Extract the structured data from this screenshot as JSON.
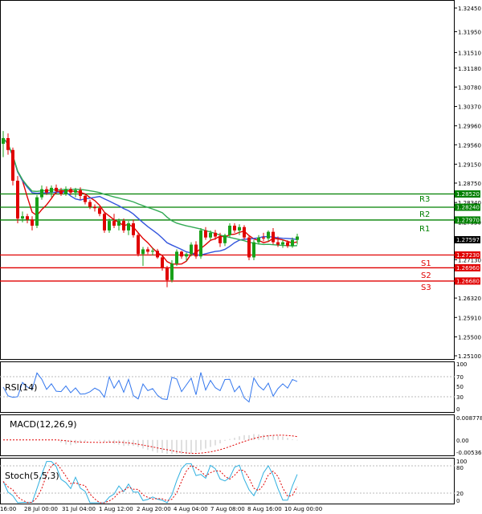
{
  "chart_data": {
    "type": "candlestick",
    "main": {
      "yticks": [
        "1.32450",
        "1.31950",
        "1.31510",
        "1.31180",
        "1.30780",
        "1.30370",
        "1.29960",
        "1.29560",
        "1.29150",
        "1.28750",
        "1.28340",
        "1.27930",
        "1.27130",
        "1.26320",
        "1.25910",
        "1.25500",
        "1.25100"
      ],
      "ylim": [
        1.251,
        1.3245
      ],
      "levels": [
        {
          "name": "R3",
          "value": 1.2852,
          "color": "#008000"
        },
        {
          "name": "R2",
          "value": 1.2824,
          "color": "#008000"
        },
        {
          "name": "R1",
          "value": 1.2797,
          "color": "#008000"
        },
        {
          "name": "S1",
          "value": 1.2723,
          "color": "#e00000"
        },
        {
          "name": "S2",
          "value": 1.2696,
          "color": "#e00000"
        },
        {
          "name": "S3",
          "value": 1.2668,
          "color": "#e00000"
        }
      ],
      "level_labels": [
        "1.28520",
        "1.28240",
        "1.27970",
        "1.27230",
        "1.26960",
        "1.26680"
      ],
      "current_price": "1.27597",
      "ma_colors": {
        "fast": "#e00000",
        "mid": "#3355dd",
        "slow": "#33aa55"
      }
    },
    "candles": [
      [
        1.2958,
        1.2985,
        1.293,
        1.297
      ],
      [
        1.297,
        1.298,
        1.2935,
        1.2945
      ],
      [
        1.2945,
        1.295,
        1.287,
        1.288
      ],
      [
        1.288,
        1.289,
        1.279,
        1.28
      ],
      [
        1.28,
        1.2815,
        1.2792,
        1.2805
      ],
      [
        1.2805,
        1.281,
        1.279,
        1.2798
      ],
      [
        1.2798,
        1.2805,
        1.2775,
        1.2785
      ],
      [
        1.2785,
        1.285,
        1.278,
        1.2845
      ],
      [
        1.2845,
        1.287,
        1.284,
        1.2862
      ],
      [
        1.2862,
        1.2868,
        1.285,
        1.2855
      ],
      [
        1.2855,
        1.287,
        1.2845,
        1.2865
      ],
      [
        1.2865,
        1.2872,
        1.2852,
        1.2858
      ],
      [
        1.2858,
        1.2865,
        1.2848,
        1.2852
      ],
      [
        1.2852,
        1.2868,
        1.2848,
        1.2862
      ],
      [
        1.2862,
        1.2866,
        1.285,
        1.2855
      ],
      [
        1.2855,
        1.2865,
        1.2845,
        1.286
      ],
      [
        1.286,
        1.2866,
        1.284,
        1.2848
      ],
      [
        1.2848,
        1.2852,
        1.283,
        1.2835
      ],
      [
        1.2835,
        1.284,
        1.282,
        1.2825
      ],
      [
        1.2825,
        1.283,
        1.2815,
        1.2822
      ],
      [
        1.2822,
        1.2826,
        1.2805,
        1.281
      ],
      [
        1.281,
        1.2814,
        1.277,
        1.2775
      ],
      [
        1.2775,
        1.28,
        1.277,
        1.2795
      ],
      [
        1.2795,
        1.281,
        1.278,
        1.2785
      ],
      [
        1.2785,
        1.28,
        1.2775,
        1.2795
      ],
      [
        1.2795,
        1.28,
        1.277,
        1.2775
      ],
      [
        1.2775,
        1.2795,
        1.2765,
        1.279
      ],
      [
        1.279,
        1.2798,
        1.276,
        1.2765
      ],
      [
        1.2765,
        1.277,
        1.272,
        1.2725
      ],
      [
        1.2725,
        1.274,
        1.27,
        1.2735
      ],
      [
        1.2735,
        1.274,
        1.2725,
        1.273
      ],
      [
        1.273,
        1.2738,
        1.2722,
        1.2732
      ],
      [
        1.2732,
        1.2736,
        1.2715,
        1.2718
      ],
      [
        1.2718,
        1.2722,
        1.269,
        1.2695
      ],
      [
        1.2695,
        1.27,
        1.2655,
        1.267
      ],
      [
        1.267,
        1.2712,
        1.2665,
        1.2705
      ],
      [
        1.2705,
        1.2735,
        1.27,
        1.273
      ],
      [
        1.273,
        1.2732,
        1.2715,
        1.272
      ],
      [
        1.272,
        1.2728,
        1.271,
        1.2725
      ],
      [
        1.2725,
        1.275,
        1.272,
        1.2745
      ],
      [
        1.2745,
        1.2752,
        1.2715,
        1.272
      ],
      [
        1.272,
        1.278,
        1.2715,
        1.2775
      ],
      [
        1.2775,
        1.2782,
        1.2755,
        1.276
      ],
      [
        1.276,
        1.2775,
        1.2755,
        1.277
      ],
      [
        1.277,
        1.2776,
        1.2755,
        1.2762
      ],
      [
        1.2762,
        1.277,
        1.274,
        1.2748
      ],
      [
        1.2748,
        1.2768,
        1.2742,
        1.2765
      ],
      [
        1.2765,
        1.279,
        1.276,
        1.2785
      ],
      [
        1.2785,
        1.279,
        1.277,
        1.2775
      ],
      [
        1.2775,
        1.2788,
        1.2765,
        1.2782
      ],
      [
        1.2782,
        1.2786,
        1.2755,
        1.276
      ],
      [
        1.276,
        1.2765,
        1.2712,
        1.2718
      ],
      [
        1.2718,
        1.2755,
        1.2712,
        1.275
      ],
      [
        1.275,
        1.2765,
        1.2745,
        1.276
      ],
      [
        1.276,
        1.277,
        1.2752,
        1.2758
      ],
      [
        1.2758,
        1.2775,
        1.2752,
        1.2772
      ],
      [
        1.2772,
        1.278,
        1.2745,
        1.275
      ],
      [
        1.275,
        1.2762,
        1.274,
        1.2745
      ],
      [
        1.2745,
        1.2755,
        1.2738,
        1.275
      ],
      [
        1.275,
        1.2754,
        1.2738,
        1.2742
      ],
      [
        1.2742,
        1.276,
        1.2738,
        1.2755
      ],
      [
        1.2755,
        1.2768,
        1.2745,
        1.2762
      ]
    ],
    "indicators": [
      {
        "name": "RSI(14)",
        "yticks": [
          "100",
          "70",
          "50",
          "30",
          "0"
        ],
        "ylim": [
          0,
          100
        ]
      },
      {
        "name": "MACD(12,26,9)",
        "yticks": [
          "0.008778",
          "0.00",
          "-0.005366"
        ],
        "ylim": [
          -0.005366,
          0.008778
        ]
      },
      {
        "name": "Stoch(5,5,3)",
        "yticks": [
          "100",
          "80",
          "20",
          "0"
        ],
        "ylim": [
          0,
          100
        ]
      }
    ],
    "xticks": [
      "16:00",
      "28 Jul 00:00",
      "31 Jul 04:00",
      "1 Aug 12:00",
      "2 Aug 20:00",
      "4 Aug 04:00",
      "7 Aug 08:00",
      "8 Aug 16:00",
      "10 Aug 00:00"
    ],
    "colors": {
      "up": "#19a019",
      "down": "#e00000",
      "rsi": "#3377ee",
      "macd": "#c0c0c0",
      "macd_signal": "#e00000",
      "stoch_main": "#30b0e0",
      "stoch_signal": "#e00000"
    }
  }
}
